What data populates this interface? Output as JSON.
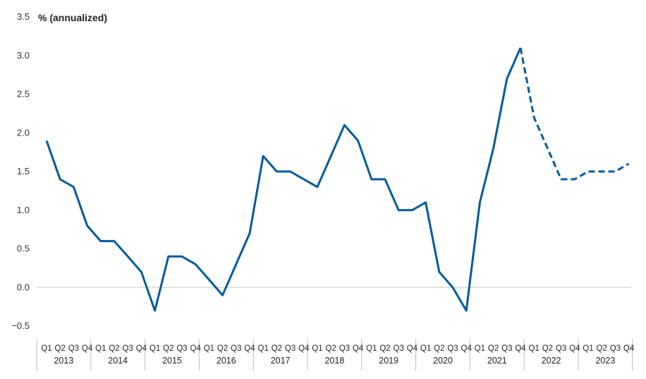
{
  "chart_data": {
    "type": "line",
    "ylabel": "% (annualized)",
    "ylim": [
      -0.5,
      3.5
    ],
    "yticks": [
      "3.5",
      "3.0",
      "2.5",
      "2.0",
      "1.5",
      "1.0",
      "0.5",
      "0.0",
      "−0.5"
    ],
    "ytick_values": [
      3.5,
      3.0,
      2.5,
      2.0,
      1.5,
      1.0,
      0.5,
      0.0,
      -0.5
    ],
    "quarters": [
      "Q1",
      "Q2",
      "Q3",
      "Q4"
    ],
    "years": [
      "2013",
      "2014",
      "2015",
      "2016",
      "2017",
      "2018",
      "2019",
      "2020",
      "2021",
      "2022",
      "2023"
    ],
    "series": [
      {
        "style": "solid",
        "start_index": 0,
        "values": [
          1.9,
          1.4,
          1.3,
          0.8,
          0.6,
          0.6,
          0.4,
          0.2,
          -0.3,
          0.4,
          0.4,
          0.3,
          0.1,
          -0.1,
          0.3,
          0.7,
          1.7,
          1.5,
          1.5,
          1.4,
          1.3,
          1.7,
          2.1,
          1.9,
          1.4,
          1.4,
          1.0,
          1.0,
          1.1,
          0.2,
          0.0,
          -0.3,
          1.1,
          1.8,
          2.7,
          3.1
        ]
      },
      {
        "style": "dashed",
        "start_index": 35,
        "values": [
          3.1,
          2.2,
          1.8,
          1.4,
          1.4,
          1.5,
          1.5,
          1.5,
          1.6
        ]
      }
    ],
    "line_color": "#005a9c",
    "zero_line_color": "#cccccc",
    "grid": false
  }
}
